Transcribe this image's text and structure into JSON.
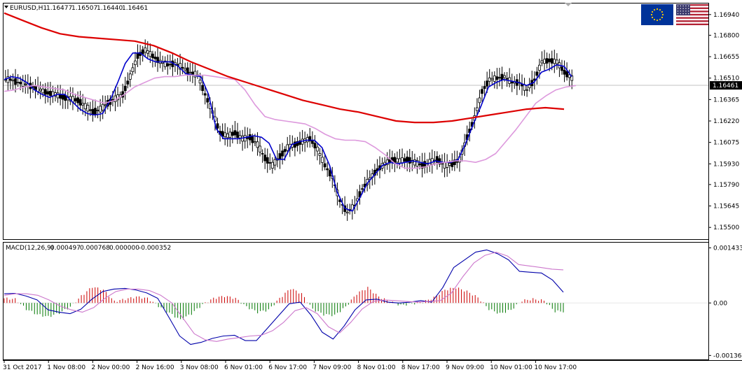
{
  "header": {
    "symbol_label": "EURUSD,H1",
    "ohlc": [
      "1.16477",
      "1.16507",
      "1.16440",
      "1.16461"
    ]
  },
  "macd": {
    "label": "MACD(12,26,9)",
    "values": [
      "0.000497",
      "0.000768",
      "0.000000",
      "-0.000352"
    ]
  },
  "flags": [
    {
      "name": "eu-flag",
      "colors": {
        "field": "#003399",
        "stars": "#ffcc00"
      }
    },
    {
      "name": "us-flag",
      "colors": {
        "stripe": "#b22234",
        "canton": "#3c3b6e"
      }
    }
  ],
  "colors": {
    "candles": "#000000",
    "ma_fast": "#0000cc",
    "ma_medium": "#dd99dd",
    "ma_slow": "#dd0000",
    "macd_main": "#0000aa",
    "macd_signal": "#cc77cc",
    "hist_pos": "#cc0000",
    "hist_neg": "#007700",
    "last_price_line": "#c0c0c0"
  },
  "chart_data": [
    {
      "type": "candlestick",
      "title": "EURUSD,H1",
      "y_ticks": [
        "1.16940",
        "1.16800",
        "1.16655",
        "1.16510",
        "1.16365",
        "1.16220",
        "1.16075",
        "1.15930",
        "1.15790",
        "1.15645",
        "1.15500"
      ],
      "ylim": [
        1.1543,
        1.1701
      ],
      "last_price": 1.16461,
      "last_price_label": "1.16461",
      "x_ticks": [
        "31 Oct 2017",
        "1 Nov 08:00",
        "2 Nov 00:00",
        "2 Nov 16:00",
        "3 Nov 08:00",
        "6 Nov 01:00",
        "6 Nov 17:00",
        "7 Nov 09:00",
        "8 Nov 01:00",
        "8 Nov 17:00",
        "9 Nov 09:00",
        "10 Nov 01:00",
        "10 Nov 17:00"
      ],
      "series": [
        {
          "name": "Close",
          "approx_closes": [
            1.165,
            1.1648,
            1.1647,
            1.1645,
            1.1643,
            1.1641,
            1.164,
            1.1638,
            1.1637,
            1.1636,
            1.1632,
            1.1628,
            1.163,
            1.1634,
            1.1637,
            1.164,
            1.1652,
            1.1666,
            1.167,
            1.1666,
            1.1662,
            1.166,
            1.1661,
            1.1658,
            1.1655,
            1.1653,
            1.164,
            1.1628,
            1.1614,
            1.1612,
            1.1614,
            1.161,
            1.1611,
            1.1606,
            1.1597,
            1.1592,
            1.1598,
            1.1604,
            1.1606,
            1.1608,
            1.161,
            1.1603,
            1.1592,
            1.1584,
            1.1568,
            1.156,
            1.1565,
            1.1576,
            1.1583,
            1.1589,
            1.1593,
            1.1596,
            1.1595,
            1.1596,
            1.1594,
            1.1592,
            1.1594,
            1.1596,
            1.1592,
            1.1593,
            1.1596,
            1.1611,
            1.1624,
            1.1642,
            1.165,
            1.1651,
            1.1652,
            1.1648,
            1.1648,
            1.1643,
            1.165,
            1.1662,
            1.1663,
            1.1662,
            1.1655,
            1.1651
          ]
        }
      ],
      "moving_averages": [
        {
          "key": "ma_fast",
          "approx": [
            1.165,
            1.1652,
            1.1651,
            1.1648,
            1.1643,
            1.164,
            1.1638,
            1.164,
            1.164,
            1.1635,
            1.163,
            1.1627,
            1.1626,
            1.1627,
            1.1636,
            1.1648,
            1.1661,
            1.1668,
            1.1668,
            1.1664,
            1.1662,
            1.1662,
            1.1662,
            1.1659,
            1.1654,
            1.1653,
            1.1652,
            1.164,
            1.1617,
            1.161,
            1.161,
            1.161,
            1.1611,
            1.1612,
            1.1611,
            1.1607,
            1.1596,
            1.1596,
            1.1606,
            1.1608,
            1.1609,
            1.1609,
            1.1604,
            1.1592,
            1.1574,
            1.1563,
            1.1561,
            1.157,
            1.158,
            1.1586,
            1.1592,
            1.1594,
            1.1593,
            1.1594,
            1.1595,
            1.1594,
            1.1593,
            1.1595,
            1.1594,
            1.1594,
            1.1596,
            1.1607,
            1.162,
            1.1632,
            1.1645,
            1.1648,
            1.165,
            1.1649,
            1.1648,
            1.1646,
            1.1648,
            1.1655,
            1.1657,
            1.166,
            1.1659,
            1.1652
          ]
        },
        {
          "key": "ma_medium",
          "approx": [
            1.1642,
            1.1643,
            1.1645,
            1.1646,
            1.1645,
            1.1644,
            1.1643,
            1.164,
            1.1638,
            1.1636,
            1.1634,
            1.1636,
            1.164,
            1.1645,
            1.1648,
            1.1651,
            1.1652,
            1.1652,
            1.1653,
            1.1653,
            1.1653,
            1.1652,
            1.1651,
            1.165,
            1.1643,
            1.1633,
            1.1625,
            1.1623,
            1.1622,
            1.1621,
            1.162,
            1.1617,
            1.1613,
            1.161,
            1.1609,
            1.1609,
            1.1608,
            1.1604,
            1.1599,
            1.1593,
            1.159,
            1.159,
            1.1591,
            1.1593,
            1.1594,
            1.1595,
            1.1595,
            1.1594,
            1.1596,
            1.16,
            1.1608,
            1.1616,
            1.1625,
            1.1634,
            1.1639,
            1.1643,
            1.1645,
            1.1646
          ]
        },
        {
          "key": "ma_slow",
          "approx": [
            1.1695,
            1.169,
            1.1685,
            1.1681,
            1.1679,
            1.1678,
            1.1677,
            1.1676,
            1.1673,
            1.1668,
            1.1662,
            1.1657,
            1.1652,
            1.1648,
            1.1644,
            1.164,
            1.1636,
            1.1633,
            1.163,
            1.1628,
            1.1625,
            1.1622,
            1.1621,
            1.1621,
            1.1622,
            1.1624,
            1.1626,
            1.1628,
            1.163,
            1.1631,
            1.163
          ]
        }
      ]
    },
    {
      "type": "bar",
      "title": "MACD(12,26,9)",
      "y_ticks": [
        "0.001433",
        "0.00",
        "-0.001365"
      ],
      "ylim": [
        -0.00145,
        0.00155
      ],
      "series": [
        {
          "key": "macd_main",
          "approx": [
            0.00024,
            0.00025,
            0.00018,
            8e-05,
            -0.00018,
            -0.00024,
            -0.00028,
            -0.00016,
            0.0001,
            0.0003,
            0.00036,
            0.00038,
            0.00034,
            0.00026,
            0.00012,
            -0.00036,
            -0.00086,
            -0.00108,
            -0.00102,
            -0.00092,
            -0.00086,
            -0.00084,
            -0.00098,
            -0.00098,
            -0.00066,
            -0.00034,
            -2e-05,
            2e-05,
            -0.00032,
            -0.00076,
            -0.00094,
            -0.0006,
            -0.00018,
            8e-05,
            0.0001,
            2e-05,
            0.0,
            2e-05,
            6e-05,
            2e-05,
            0.0004,
            0.00092,
            0.00112,
            0.00132,
            0.00138,
            0.00128,
            0.00112,
            0.00082,
            0.0008,
            0.00078,
            0.0006,
            0.00028
          ]
        },
        {
          "key": "macd_signal",
          "approx": [
            0.0002,
            0.00024,
            0.00024,
            0.0002,
            8e-05,
            -8e-05,
            -0.00018,
            -0.00024,
            -0.00012,
            0.00012,
            0.0003,
            0.00036,
            0.00036,
            0.00032,
            0.0002,
            0.0,
            -0.0004,
            -0.0008,
            -0.00096,
            -0.001,
            -0.00094,
            -0.0009,
            -0.00086,
            -0.00084,
            -0.00072,
            -0.0005,
            -0.0002,
            -0.00012,
            -0.00028,
            -0.00062,
            -0.00078,
            -0.0005,
            -0.00016,
            4e-05,
            8e-05,
            6e-05,
            4e-05,
            2e-05,
            4e-05,
            6e-05,
            0.00026,
            0.00068,
            0.00104,
            0.00124,
            0.00132,
            0.00122,
            0.001,
            0.00096,
            0.00092,
            0.00088,
            0.00086
          ]
        },
        {
          "key": "histogram",
          "approx": [
            0.00012,
            0.0001,
            -0.00016,
            -0.0003,
            -0.00036,
            -0.00026,
            -0.0001,
            0.00018,
            0.00042,
            0.00034,
            4e-05,
            0.0001,
            0.00016,
            0.00012,
            -8e-05,
            -0.00026,
            -0.00044,
            -0.00028,
            -4e-05,
            0.00012,
            0.00018,
            0.00012,
            -0.0001,
            -0.00024,
            -0.00018,
            0.00012,
            0.00038,
            0.00024,
            -0.00016,
            -0.0003,
            -0.00032,
            -0.0001,
            0.00024,
            0.0004,
            0.00016,
            4e-05,
            -6e-05,
            -2e-05,
            2e-05,
            0.00014,
            0.00034,
            0.0004,
            0.0003,
            0.00014,
            -0.00016,
            -0.00028,
            -0.00018,
            6e-05,
            0.0001,
            6e-05,
            -0.00022
          ]
        }
      ]
    }
  ]
}
